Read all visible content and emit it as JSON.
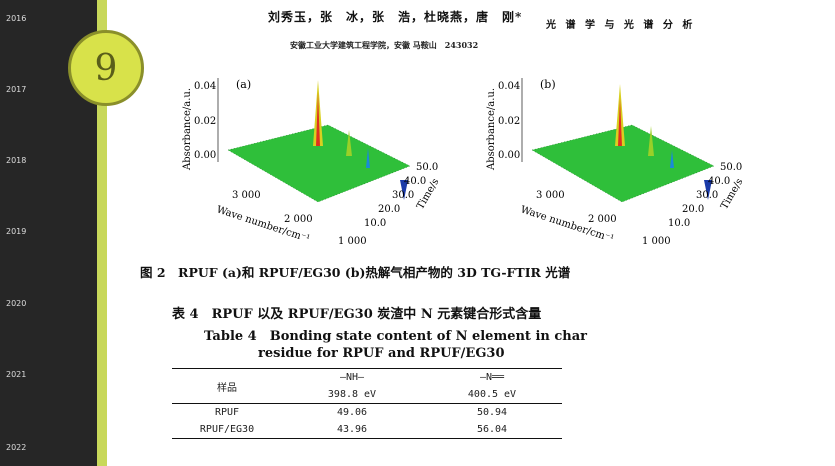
{
  "sidebar": {
    "years": [
      "2016",
      "2017",
      "2018",
      "2019",
      "2020",
      "2021",
      "2022"
    ],
    "badge": "9"
  },
  "header": {
    "authors": "刘秀玉，张　冰，张　浩，杜晓燕，唐　刚*",
    "journal": "光 谱 学 与 光 谱 分 析",
    "affiliation": "安徽工业大学建筑工程学院，安徽 马鞍山　243032"
  },
  "figure": {
    "panels": [
      {
        "label": "(a)",
        "y_axis": "Absorbance/a.u.",
        "x_axis": "Wave number/cm⁻¹",
        "t_axis": "Time/s",
        "y_ticks": [
          "0.04",
          "0.02",
          "0.00"
        ],
        "x_ticks": [
          "3 000",
          "2 000",
          "1 000"
        ],
        "t_ticks": [
          "50.0",
          "40.0",
          "30.0",
          "20.0",
          "10.0"
        ]
      },
      {
        "label": "(b)",
        "y_axis": "Absorbance/a.u.",
        "x_axis": "Wave number/cm⁻¹",
        "t_axis": "Time/s",
        "y_ticks": [
          "0.04",
          "0.02",
          "0.00"
        ],
        "x_ticks": [
          "3 000",
          "2 000",
          "1 000"
        ],
        "t_ticks": [
          "50.0",
          "40.0",
          "30.0",
          "20.0",
          "10.0"
        ]
      }
    ],
    "caption": "图 2　RPUF (a)和 RPUF/EG30 (b)热解气相产物的 3D TG-FTIR 光谱"
  },
  "table": {
    "title_zh": "表 4　RPUF 以及 RPUF/EG30 炭渣中 N 元素键合形式含量",
    "title_en_1": "Table 4　Bonding state content of N element in char",
    "title_en_2": "residue for RPUF and RPUF/EG30",
    "header_sample": "样品",
    "header_col1": "—NH—",
    "header_col2": "—N══",
    "sub_col1": "398.8 eV",
    "sub_col2": "400.5 eV",
    "rows": [
      {
        "sample": "RPUF",
        "nh": "49.06",
        "n": "50.94"
      },
      {
        "sample": "RPUF/EG30",
        "nh": "43.96",
        "n": "56.04"
      }
    ]
  },
  "colors": {
    "sidebar": "#262626",
    "accent": "#c8d85a",
    "surface": "#2fbf3a"
  }
}
